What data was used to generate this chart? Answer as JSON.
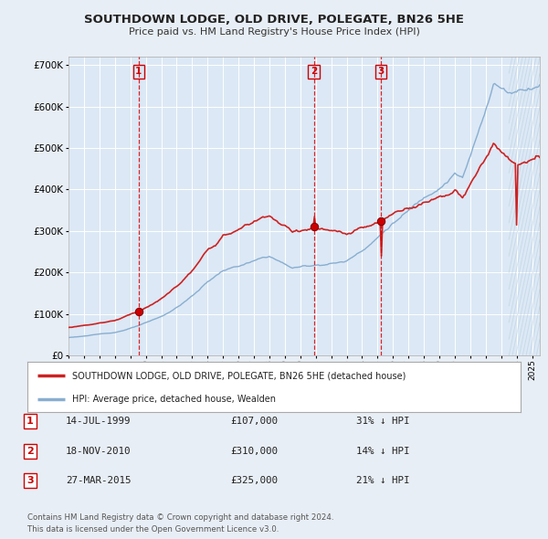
{
  "title": "SOUTHDOWN LODGE, OLD DRIVE, POLEGATE, BN26 5HE",
  "subtitle": "Price paid vs. HM Land Registry's House Price Index (HPI)",
  "bg_color": "#e8eef5",
  "plot_bg_color": "#dce8f5",
  "legend_label_red": "SOUTHDOWN LODGE, OLD DRIVE, POLEGATE, BN26 5HE (detached house)",
  "legend_label_blue": "HPI: Average price, detached house, Wealden",
  "transactions": [
    {
      "label": "1",
      "date": "14-JUL-1999",
      "price": 107000,
      "pct": "31%",
      "dir": "↓",
      "year_x": 1999.54
    },
    {
      "label": "2",
      "date": "18-NOV-2010",
      "price": 310000,
      "pct": "14%",
      "dir": "↓",
      "year_x": 2010.88
    },
    {
      "label": "3",
      "date": "27-MAR-2015",
      "price": 325000,
      "pct": "21%",
      "dir": "↓",
      "year_x": 2015.23
    }
  ],
  "footer_line1": "Contains HM Land Registry data © Crown copyright and database right 2024.",
  "footer_line2": "This data is licensed under the Open Government Licence v3.0.",
  "xmin": 1995.0,
  "xmax": 2025.5,
  "ymin": 0,
  "ymax": 720000,
  "yticks": [
    0,
    100000,
    200000,
    300000,
    400000,
    500000,
    600000,
    700000
  ],
  "ytick_labels": [
    "£0",
    "£100K",
    "£200K",
    "£300K",
    "£400K",
    "£500K",
    "£600K",
    "£700K"
  ],
  "red_color": "#cc2222",
  "blue_color": "#88aed0",
  "grid_color": "#ffffff",
  "spine_color": "#aaaaaa"
}
